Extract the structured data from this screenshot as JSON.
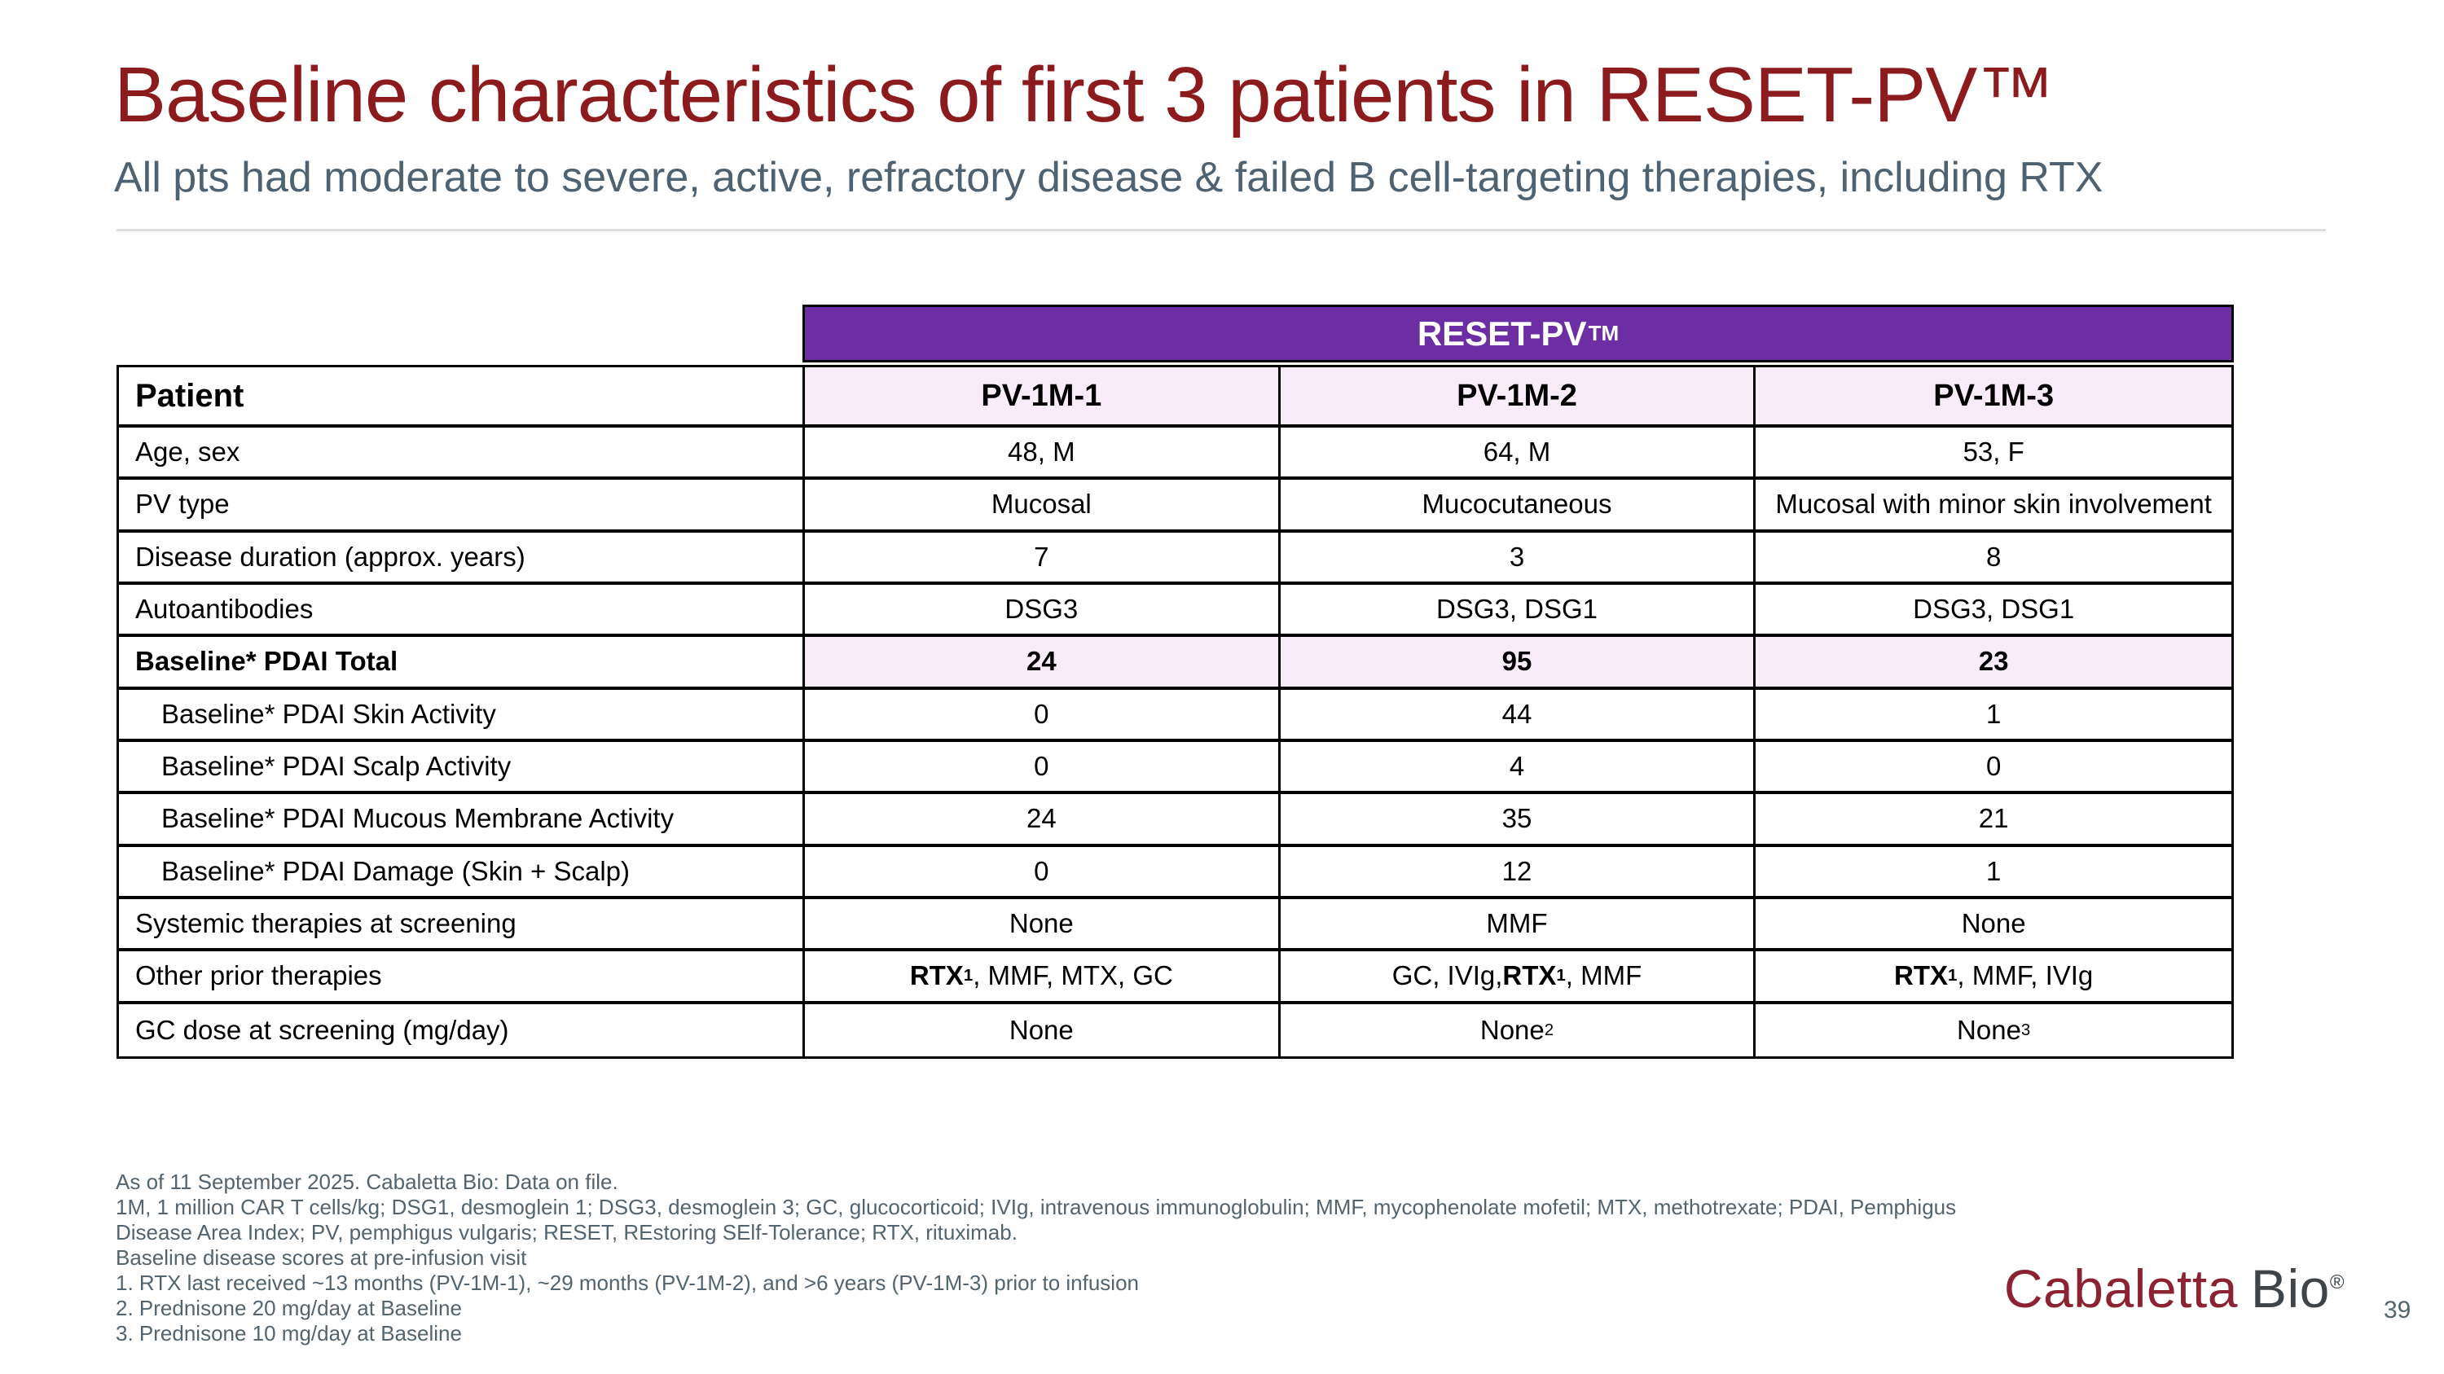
{
  "slide": {
    "title": "Baseline characteristics of first 3 patients in RESET-PV™",
    "subtitle": "All pts had moderate to severe, active, refractory disease & failed B cell-targeting therapies, including RTX",
    "page_number": "39"
  },
  "colors": {
    "title_red": "#8C1B1E",
    "subtitle_slate": "#4E6272",
    "band_purple": "#6C2EA2",
    "lavender_header": "#F8ECF8",
    "logo_red": "#8B2332",
    "logo_gray": "#3F4449",
    "border_black": "#000000"
  },
  "table": {
    "band_label": "RESET-PV",
    "band_sup": "TM",
    "header": {
      "label": "Patient",
      "cols": [
        "PV-1M-1",
        "PV-1M-2",
        "PV-1M-3"
      ]
    },
    "rows": [
      {
        "label": "Age, sex",
        "values": [
          "48, M",
          "64, M",
          "53, F"
        ]
      },
      {
        "label": "PV type",
        "values": [
          "Mucosal",
          "Mucocutaneous",
          "Mucosal with minor skin involvement"
        ]
      },
      {
        "label": "Disease duration (approx. years)",
        "values": [
          "7",
          "3",
          "8"
        ]
      },
      {
        "label": "Autoantibodies",
        "values": [
          "DSG3",
          "DSG3, DSG1",
          "DSG3, DSG1"
        ]
      },
      {
        "label": "Baseline* PDAI Total",
        "bold": true,
        "highlight": true,
        "values": [
          "24",
          "95",
          "23"
        ]
      },
      {
        "label": "Baseline* PDAI Skin Activity",
        "indent": true,
        "values": [
          "0",
          "44",
          "1"
        ]
      },
      {
        "label": "Baseline* PDAI Scalp Activity",
        "indent": true,
        "values": [
          "0",
          "4",
          "0"
        ]
      },
      {
        "label": "Baseline* PDAI Mucous Membrane Activity",
        "indent": true,
        "values": [
          "24",
          "35",
          "21"
        ]
      },
      {
        "label": "Baseline* PDAI Damage (Skin + Scalp)",
        "indent": true,
        "values": [
          "0",
          "12",
          "1"
        ]
      },
      {
        "label": "Systemic therapies at screening",
        "values": [
          "None",
          "MMF",
          "None"
        ]
      },
      {
        "label": "Other prior therapies",
        "values": [
          [
            {
              "text": "RTX",
              "bold": true
            },
            {
              "text": "1",
              "bold": true,
              "sup": true
            },
            {
              "text": ", MMF, MTX, GC"
            }
          ],
          [
            {
              "text": "GC, IVIg, "
            },
            {
              "text": "RTX",
              "bold": true
            },
            {
              "text": "1",
              "bold": true,
              "sup": true
            },
            {
              "text": ", MMF"
            }
          ],
          [
            {
              "text": "RTX",
              "bold": true
            },
            {
              "text": "1",
              "bold": true,
              "sup": true
            },
            {
              "text": ", MMF, IVIg"
            }
          ]
        ]
      },
      {
        "label": "GC dose at screening (mg/day)",
        "values": [
          "None",
          [
            {
              "text": "None"
            },
            {
              "text": "2",
              "sup": true
            }
          ],
          [
            {
              "text": "None"
            },
            {
              "text": "3",
              "sup": true
            }
          ]
        ]
      }
    ]
  },
  "footnotes": [
    "As of 11 September 2025. Cabaletta Bio: Data on file.",
    "1M, 1 million CAR T cells/kg; DSG1, desmoglein 1; DSG3, desmoglein 3; GC, glucocorticoid; IVIg, intravenous immunoglobulin; MMF, mycophenolate mofetil; MTX, methotrexate; PDAI, Pemphigus",
    "Disease Area Index; PV, pemphigus vulgaris; RESET, REstoring SElf-Tolerance; RTX, rituximab.",
    "Baseline disease scores at pre-infusion visit",
    "1. RTX last received ~13 months (PV-1M-1), ~29 months (PV-1M-2), and >6 years (PV-1M-3) prior to infusion",
    "2. Prednisone 20 mg/day at Baseline",
    "3. Prednisone 10 mg/day at Baseline"
  ],
  "logo": {
    "brand_left": "Cabaletta",
    "brand_right": "Bio",
    "registered_mark": "®"
  }
}
